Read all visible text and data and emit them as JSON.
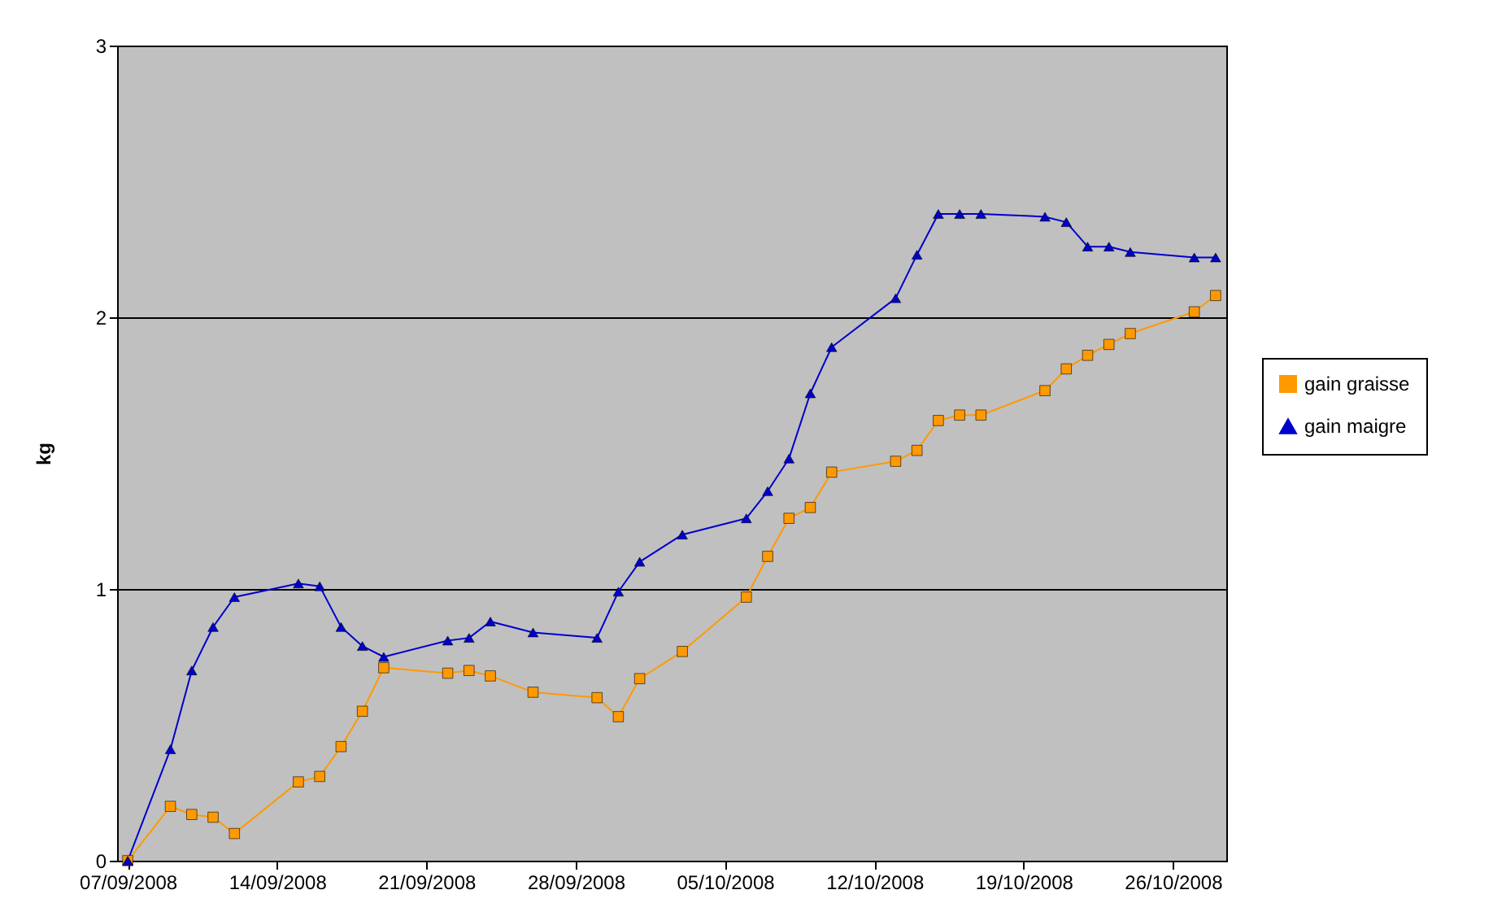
{
  "chart_data": {
    "type": "line",
    "ylabel": "kg",
    "x": [
      "2008-09-07",
      "2008-09-09",
      "2008-09-10",
      "2008-09-11",
      "2008-09-12",
      "2008-09-15",
      "2008-09-16",
      "2008-09-17",
      "2008-09-18",
      "2008-09-19",
      "2008-09-22",
      "2008-09-23",
      "2008-09-24",
      "2008-09-26",
      "2008-09-29",
      "2008-09-30",
      "2008-10-01",
      "2008-10-03",
      "2008-10-06",
      "2008-10-07",
      "2008-10-08",
      "2008-10-09",
      "2008-10-10",
      "2008-10-13",
      "2008-10-14",
      "2008-10-15",
      "2008-10-16",
      "2008-10-17",
      "2008-10-20",
      "2008-10-21",
      "2008-10-22",
      "2008-10-23",
      "2008-10-24",
      "2008-10-27",
      "2008-10-28"
    ],
    "series": [
      {
        "name": "gain graisse",
        "color": "#ff9900",
        "marker": "square",
        "values": [
          0,
          0.2,
          0.17,
          0.16,
          0.1,
          0.29,
          0.31,
          0.42,
          0.55,
          0.71,
          0.69,
          0.7,
          0.68,
          0.62,
          0.6,
          0.53,
          0.67,
          0.77,
          0.97,
          1.12,
          1.26,
          1.3,
          1.43,
          1.47,
          1.51,
          1.62,
          1.64,
          1.64,
          1.73,
          1.81,
          1.86,
          1.9,
          1.94,
          2.02,
          2.08
        ]
      },
      {
        "name": "gain maigre",
        "color": "#0000cc",
        "marker": "triangle",
        "values": [
          0,
          0.41,
          0.7,
          0.86,
          0.97,
          1.02,
          1.01,
          0.86,
          0.79,
          0.75,
          0.81,
          0.82,
          0.88,
          0.84,
          0.82,
          0.99,
          1.1,
          1.2,
          1.26,
          1.36,
          1.48,
          1.72,
          1.89,
          2.07,
          2.23,
          2.38,
          2.38,
          2.38,
          2.37,
          2.35,
          2.26,
          2.26,
          2.24,
          2.22,
          2.22
        ]
      }
    ],
    "xlim": [
      "2008-09-06T12:00",
      "2008-10-28T12:00"
    ],
    "xticks": [
      {
        "value": "2008-09-07",
        "label": "07/09/2008"
      },
      {
        "value": "2008-09-14",
        "label": "14/09/2008"
      },
      {
        "value": "2008-09-21",
        "label": "21/09/2008"
      },
      {
        "value": "2008-09-28",
        "label": "28/09/2008"
      },
      {
        "value": "2008-10-05",
        "label": "05/10/2008"
      },
      {
        "value": "2008-10-12",
        "label": "12/10/2008"
      },
      {
        "value": "2008-10-19",
        "label": "19/10/2008"
      },
      {
        "value": "2008-10-26",
        "label": "26/10/2008"
      }
    ],
    "ylim": [
      0,
      3
    ],
    "yticks": [
      0,
      1,
      2,
      3
    ],
    "grid": "y",
    "legend": "right"
  }
}
